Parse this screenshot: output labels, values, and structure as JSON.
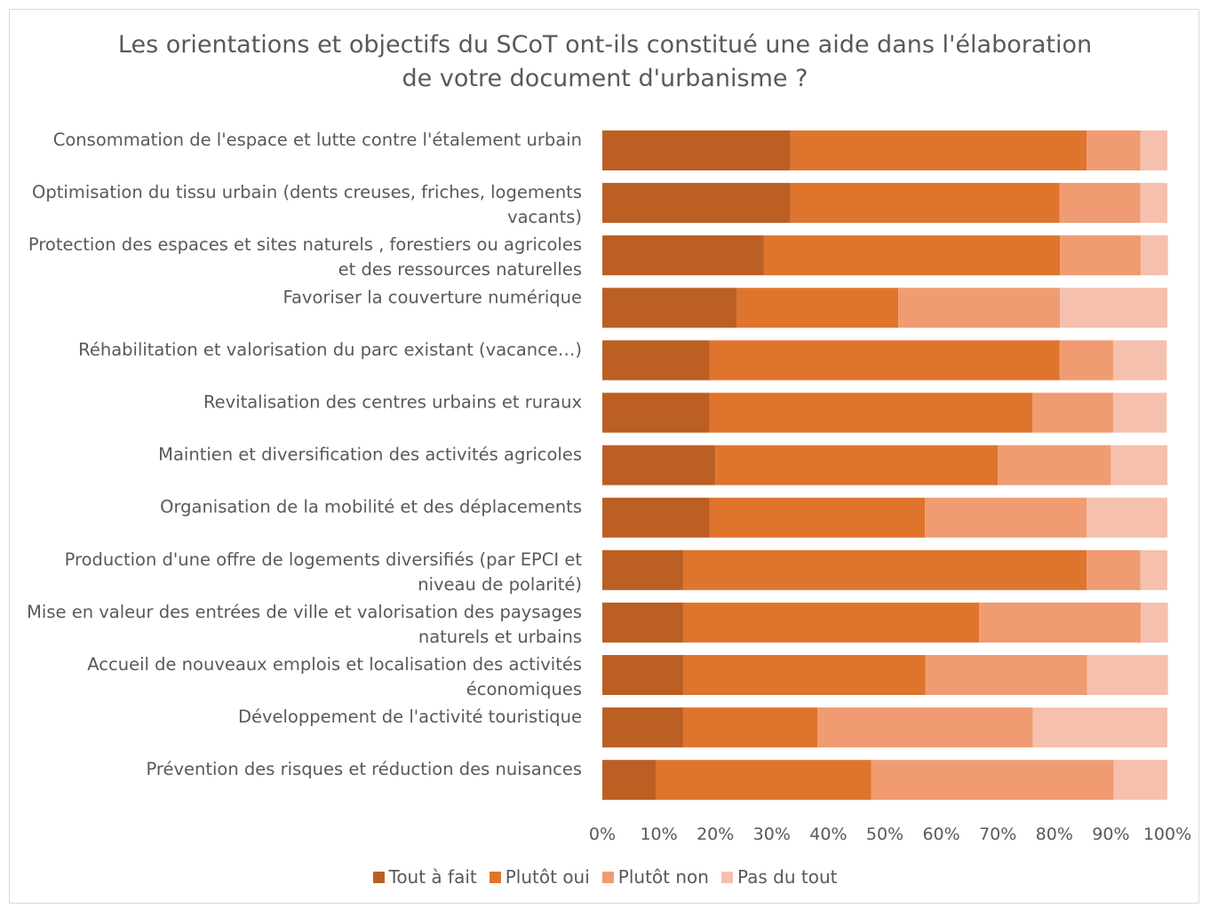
{
  "chart_data": {
    "type": "bar",
    "orientation": "horizontal",
    "stacked": "percent",
    "title": "Les orientations et objectifs du SCoT ont-ils constitué une aide dans l'élaboration de votre document d'urbanisme ?",
    "title_lines": [
      "Les orientations et objectifs du SCoT ont-ils constitué une aide dans l'élaboration",
      "de votre document d'urbanisme ?"
    ],
    "categories": [
      [
        "Consommation de l'espace et lutte contre l'étalement urbain"
      ],
      [
        "Optimisation du tissu urbain (dents creuses, friches, logements",
        "vacants)"
      ],
      [
        "Protection des espaces et sites naturels , forestiers ou agricoles",
        "et des ressources naturelles"
      ],
      [
        "Favoriser la couverture numérique"
      ],
      [
        "Réhabilitation et valorisation du parc existant (vacance…)"
      ],
      [
        "Revitalisation des centres urbains et ruraux"
      ],
      [
        "Maintien et diversification des activités agricoles"
      ],
      [
        "Organisation de la mobilité et des déplacements"
      ],
      [
        "Production d'une offre de logements diversifiés (par EPCI et",
        "niveau de polarité)"
      ],
      [
        "Mise en valeur des entrées de ville et valorisation des paysages",
        "naturels et urbains"
      ],
      [
        "Accueil de nouveaux emplois et localisation des activités",
        "économiques"
      ],
      [
        "Développement de l'activité touristique"
      ],
      [
        "Prévention des risques et réduction des nuisances"
      ]
    ],
    "series": [
      {
        "name": "Tout à fait",
        "color": "#bb5f23",
        "values": [
          33.3,
          33.3,
          28.6,
          23.8,
          19.0,
          19.0,
          20.0,
          19.0,
          14.3,
          14.3,
          14.3,
          14.3,
          9.5
        ]
      },
      {
        "name": "Plutôt oui",
        "color": "#df742d",
        "values": [
          52.4,
          47.6,
          52.4,
          28.6,
          61.9,
          57.1,
          50.0,
          38.1,
          71.4,
          52.4,
          42.9,
          23.8,
          38.1
        ]
      },
      {
        "name": "Plutôt non",
        "color": "#f09b72",
        "values": [
          9.5,
          14.3,
          14.3,
          28.6,
          9.5,
          14.3,
          20.0,
          28.6,
          9.5,
          28.6,
          28.6,
          38.1,
          42.9
        ]
      },
      {
        "name": "Pas du tout",
        "color": "#f5c0ad",
        "values": [
          4.8,
          4.8,
          4.8,
          19.0,
          9.5,
          9.5,
          10.0,
          14.3,
          4.8,
          4.8,
          14.3,
          23.8,
          9.5
        ]
      }
    ],
    "xlim": [
      0,
      100
    ],
    "xticks": [
      "0%",
      "10%",
      "20%",
      "30%",
      "40%",
      "50%",
      "60%",
      "70%",
      "80%",
      "90%",
      "100%"
    ],
    "grid": false,
    "legend_position": "bottom"
  }
}
